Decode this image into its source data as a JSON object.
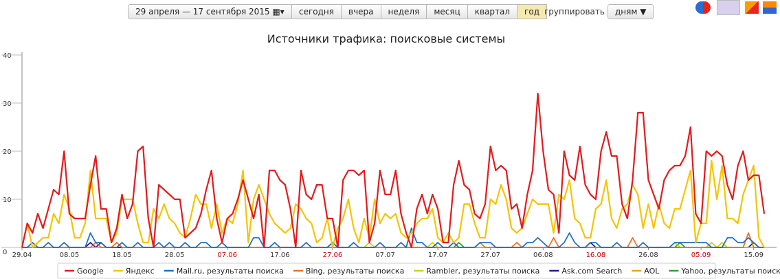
{
  "header": {
    "date_range": "29 апреля — 17 сентября 2015",
    "periods": [
      "сегодня",
      "вчера",
      "неделя",
      "месяц",
      "квартал",
      "год"
    ],
    "active_period": 5,
    "group_label": "группировать по",
    "group_value": "дням"
  },
  "chart_data": {
    "type": "line",
    "title": "Источники трафика: поисковые системы",
    "categories": [
      "29.04",
      null,
      null,
      null,
      null,
      null,
      null,
      null,
      null,
      "08.05",
      null,
      null,
      null,
      null,
      null,
      null,
      null,
      null,
      null,
      "18.05",
      null,
      null,
      null,
      null,
      null,
      null,
      null,
      null,
      null,
      "28.05",
      null,
      null,
      null,
      null,
      null,
      null,
      null,
      null,
      null,
      "07.06",
      null,
      null,
      null,
      null,
      null,
      null,
      null,
      null,
      null,
      "17.06",
      null,
      null,
      null,
      null,
      null,
      null,
      null,
      null,
      null,
      "27.06",
      null,
      null,
      null,
      null,
      null,
      null,
      null,
      null,
      null,
      "07.07",
      null,
      null,
      null,
      null,
      null,
      null,
      null,
      null,
      null,
      "17.07",
      null,
      null,
      null,
      null,
      null,
      null,
      null,
      null,
      null,
      "27.07",
      null,
      null,
      null,
      null,
      null,
      null,
      null,
      null,
      null,
      "06.08",
      null,
      null,
      null,
      null,
      null,
      null,
      null,
      null,
      null,
      "16.08",
      null,
      null,
      null,
      null,
      null,
      null,
      null,
      null,
      null,
      "26.08",
      null,
      null,
      null,
      null,
      null,
      null,
      null,
      null,
      null,
      "05.09",
      null,
      null,
      null,
      null,
      null,
      null,
      null,
      null,
      null,
      "15.09",
      null,
      null
    ],
    "weekend_ticks": [
      39,
      59,
      109,
      129
    ],
    "weekend_color": "#cc0000",
    "ylim": [
      0,
      40
    ],
    "yticks": [
      0,
      10,
      20,
      30,
      40
    ],
    "grid": false,
    "series": [
      {
        "name": "Google",
        "color": "#e41a1c",
        "values": [
          0,
          5,
          3,
          7,
          4,
          8,
          12,
          11,
          20,
          7,
          6,
          6,
          6,
          13,
          19,
          8,
          8,
          1,
          4,
          11,
          6,
          9,
          20,
          21,
          6,
          0,
          13,
          12,
          11,
          10,
          10,
          2,
          3,
          4,
          7,
          12,
          16,
          6,
          1,
          6,
          7,
          10,
          14,
          10,
          6,
          11,
          0,
          16,
          16,
          14,
          13,
          8,
          0,
          16,
          11,
          10,
          13,
          13,
          6,
          6,
          0,
          14,
          16,
          16,
          15,
          16,
          1,
          5,
          16,
          11,
          11,
          16,
          7,
          3,
          0,
          8,
          11,
          7,
          11,
          8,
          1,
          1,
          13,
          18,
          13,
          12,
          7,
          6,
          9,
          21,
          16,
          17,
          16,
          8,
          9,
          4,
          11,
          16,
          32,
          20,
          12,
          11,
          3,
          20,
          15,
          14,
          21,
          13,
          11,
          10,
          20,
          24,
          19,
          19,
          9,
          6,
          14,
          28,
          28,
          14,
          11,
          8,
          14,
          16,
          17,
          17,
          19,
          25,
          7,
          5,
          20,
          19,
          20,
          19,
          13,
          10,
          17,
          20,
          14,
          15,
          15,
          7
        ]
      },
      {
        "name": "Яндекс",
        "color": "#f5c400",
        "values": [
          0,
          5,
          0,
          1,
          2,
          2,
          7,
          5,
          11,
          8,
          2,
          2,
          5,
          16,
          6,
          6,
          6,
          1,
          3,
          10,
          10,
          10,
          5,
          1,
          1,
          8,
          6,
          9,
          6,
          5,
          3,
          2,
          6,
          11,
          9,
          9,
          4,
          9,
          3,
          6,
          5,
          9,
          16,
          1,
          10,
          13,
          10,
          7,
          5,
          4,
          3,
          4,
          9,
          8,
          6,
          5,
          1,
          2,
          6,
          0,
          4,
          6,
          10,
          4,
          1,
          6,
          2,
          10,
          5,
          7,
          6,
          7,
          3,
          2,
          3,
          5,
          6,
          6,
          8,
          2,
          1,
          3,
          1,
          2,
          9,
          9,
          5,
          2,
          2,
          10,
          9,
          13,
          10,
          4,
          3,
          4,
          7,
          10,
          9,
          9,
          9,
          3,
          11,
          10,
          14,
          6,
          5,
          2,
          2,
          8,
          9,
          14,
          6,
          4,
          8,
          9,
          13,
          11,
          4,
          9,
          4,
          9,
          5,
          4,
          8,
          8,
          12,
          16,
          1,
          5,
          5,
          18,
          10,
          17,
          6,
          6,
          5,
          11,
          14,
          17,
          2,
          0
        ]
      },
      {
        "name": "Mail.ru, результаты поиска",
        "color": "#1f6fc5",
        "values": [
          0,
          0,
          1,
          0,
          0,
          1,
          0,
          0,
          1,
          0,
          0,
          0,
          0,
          3,
          1,
          1,
          0,
          0,
          0,
          1,
          0,
          0,
          1,
          0,
          0,
          0,
          1,
          0,
          1,
          0,
          0,
          1,
          0,
          0,
          1,
          1,
          0,
          0,
          1,
          0,
          0,
          0,
          0,
          0,
          2,
          2,
          0,
          0,
          1,
          0,
          0,
          0,
          0,
          0,
          1,
          0,
          0,
          0,
          0,
          1,
          0,
          0,
          0,
          1,
          0,
          0,
          0,
          0,
          1,
          0,
          0,
          0,
          1,
          0,
          4,
          1,
          1,
          0,
          0,
          1,
          0,
          0,
          1,
          0,
          0,
          0,
          0,
          1,
          1,
          1,
          0,
          0,
          0,
          0,
          0,
          0,
          1,
          1,
          2,
          1,
          0,
          0,
          0,
          1,
          3,
          1,
          0,
          0,
          1,
          1,
          0,
          0,
          0,
          1,
          0,
          0,
          0,
          0,
          1,
          0,
          0,
          0,
          0,
          0,
          1,
          1,
          1,
          1,
          1,
          1,
          1,
          0,
          0,
          0,
          2,
          2,
          1,
          1,
          2,
          1,
          0,
          0
        ]
      },
      {
        "name": "Bing, результаты поиска",
        "color": "#f07020",
        "values": [
          0,
          0,
          0,
          0,
          0,
          0,
          0,
          0,
          0,
          0,
          0,
          0,
          0,
          0,
          1,
          0,
          0,
          0,
          1,
          0,
          0,
          0,
          0,
          0,
          0,
          0,
          0,
          0,
          0,
          0,
          0,
          0,
          0,
          0,
          0,
          0,
          0,
          0,
          0,
          0,
          0,
          0,
          0,
          0,
          0,
          0,
          0,
          0,
          0,
          0,
          0,
          0,
          0,
          0,
          0,
          0,
          0,
          0,
          0,
          0,
          0,
          0,
          0,
          0,
          0,
          0,
          0,
          0,
          0,
          0,
          0,
          0,
          0,
          0,
          0,
          0,
          0,
          0,
          0,
          0,
          0,
          0,
          0,
          0,
          0,
          0,
          0,
          1,
          0,
          0,
          0,
          0,
          0,
          0,
          1,
          0,
          0,
          0,
          0,
          0,
          0,
          2,
          0,
          0,
          0,
          0,
          0,
          0,
          0,
          0,
          0,
          0,
          0,
          0,
          0,
          0,
          2,
          0,
          0,
          0,
          0,
          0,
          0,
          0,
          0,
          0,
          0,
          0,
          0,
          0,
          0,
          0,
          0,
          0,
          0,
          0,
          0,
          0,
          3,
          0,
          0,
          0
        ]
      },
      {
        "name": "Rambler, результаты поиска",
        "color": "#c8d400",
        "values": [
          0,
          0,
          0,
          0,
          0,
          0,
          0,
          0,
          0,
          0,
          0,
          0,
          0,
          0,
          0,
          0,
          0,
          0,
          1,
          0,
          0,
          0,
          0,
          0,
          0,
          0,
          0,
          0,
          0,
          0,
          0,
          0,
          0,
          0,
          0,
          0,
          0,
          0,
          0,
          0,
          0,
          0,
          0,
          0,
          0,
          0,
          0,
          0,
          0,
          0,
          0,
          0,
          0,
          0,
          0,
          0,
          0,
          0,
          0,
          0,
          0,
          0,
          0,
          0,
          0,
          0,
          1,
          0,
          0,
          0,
          0,
          0,
          0,
          0,
          0,
          0,
          0,
          0,
          1,
          0,
          0,
          0,
          0,
          0,
          0,
          0,
          0,
          0,
          0,
          0,
          0,
          0,
          0,
          0,
          0,
          0,
          0,
          0,
          0,
          0,
          0,
          0,
          0,
          0,
          0,
          0,
          0,
          0,
          0,
          0,
          0,
          0,
          0,
          0,
          0,
          0,
          0,
          0,
          0,
          0,
          0,
          0,
          0,
          0,
          1,
          0,
          0,
          0,
          0,
          0,
          0,
          1,
          0,
          1,
          0,
          0,
          0,
          0,
          0,
          0,
          0,
          0
        ]
      },
      {
        "name": "Ask.com Search",
        "color": "#1a1a8c",
        "values": [
          0,
          0,
          0,
          0,
          0,
          0,
          0,
          0,
          0,
          0,
          0,
          0,
          0,
          1,
          0,
          1,
          0,
          0,
          0,
          0,
          0,
          0,
          0,
          0,
          0,
          0,
          0,
          0,
          0,
          0,
          0,
          0,
          0,
          0,
          0,
          0,
          0,
          0,
          0,
          0,
          0,
          0,
          0,
          0,
          0,
          0,
          0,
          0,
          0,
          0,
          0,
          0,
          0,
          0,
          0,
          0,
          0,
          0,
          0,
          0,
          0,
          0,
          0,
          0,
          0,
          0,
          0,
          0,
          0,
          0,
          0,
          0,
          0,
          0,
          0,
          0,
          0,
          0,
          0,
          0,
          0,
          0,
          0,
          0,
          0,
          0,
          0,
          0,
          0,
          0,
          0,
          0,
          0,
          0,
          0,
          0,
          0,
          0,
          0,
          0,
          0,
          0,
          0,
          0,
          0,
          0,
          0,
          0,
          1,
          0,
          0,
          0,
          0,
          0,
          0,
          0,
          0,
          0,
          0,
          0,
          0,
          0,
          0,
          0,
          0,
          0,
          0,
          0,
          0,
          0,
          0,
          0,
          0,
          0,
          0,
          0,
          0,
          0,
          0,
          1,
          0,
          0
        ]
      },
      {
        "name": "AOL",
        "color": "#e8a317",
        "values": [
          0,
          0,
          1,
          0,
          0,
          0,
          0,
          0,
          0,
          0,
          0,
          0,
          0,
          0,
          0,
          0,
          0,
          0,
          0,
          0,
          0,
          0,
          0,
          0,
          0,
          0,
          0,
          0,
          0,
          0,
          0,
          0,
          0,
          0,
          0,
          0,
          0,
          0,
          0,
          0,
          0,
          0,
          0,
          0,
          0,
          0,
          0,
          0,
          0,
          0,
          0,
          0,
          0,
          0,
          0,
          0,
          0,
          0,
          0,
          0,
          0,
          0,
          0,
          0,
          0,
          0,
          0,
          0,
          0,
          0,
          0,
          0,
          0,
          0,
          0,
          0,
          0,
          0,
          0,
          0,
          0,
          0,
          0,
          0,
          0,
          0,
          0,
          0,
          0,
          0,
          0,
          0,
          0,
          0,
          0,
          0,
          0,
          0,
          0,
          0,
          0,
          0,
          0,
          0,
          0,
          0,
          0,
          0,
          0,
          0,
          0,
          0,
          0,
          0,
          0,
          0,
          0,
          0,
          0,
          0,
          0,
          0,
          0,
          0,
          0,
          0,
          0,
          0,
          0,
          0,
          0,
          0,
          0,
          0,
          0,
          0,
          0,
          0,
          0,
          0,
          0,
          0
        ]
      },
      {
        "name": "Yahoo, результаты поиска",
        "color": "#2ca02c",
        "values": [
          0,
          0,
          0,
          0,
          0,
          0,
          0,
          0,
          0,
          0,
          0,
          0,
          0,
          0,
          0,
          0,
          0,
          0,
          0,
          0,
          0,
          0,
          0,
          0,
          0,
          0,
          0,
          0,
          0,
          0,
          0,
          0,
          0,
          0,
          0,
          0,
          0,
          0,
          0,
          0,
          0,
          0,
          0,
          0,
          0,
          0,
          0,
          0,
          0,
          0,
          0,
          0,
          0,
          0,
          0,
          0,
          0,
          0,
          0,
          1,
          0,
          0,
          0,
          0,
          0,
          0,
          0,
          0,
          0,
          0,
          0,
          0,
          0,
          0,
          0,
          0,
          0,
          0,
          0,
          0,
          0,
          0,
          0,
          1,
          0,
          0,
          0,
          0,
          0,
          0,
          0,
          0,
          0,
          0,
          0,
          0,
          0,
          0,
          0,
          0,
          0,
          0,
          0,
          0,
          0,
          0,
          0,
          0,
          0,
          0,
          0,
          0,
          0,
          0,
          0,
          0,
          0,
          0,
          0,
          0,
          0,
          0,
          0,
          0,
          0,
          1,
          0,
          0,
          0,
          0,
          0,
          0,
          0,
          0,
          0,
          0,
          0,
          0,
          0,
          0,
          0,
          0
        ]
      }
    ]
  }
}
